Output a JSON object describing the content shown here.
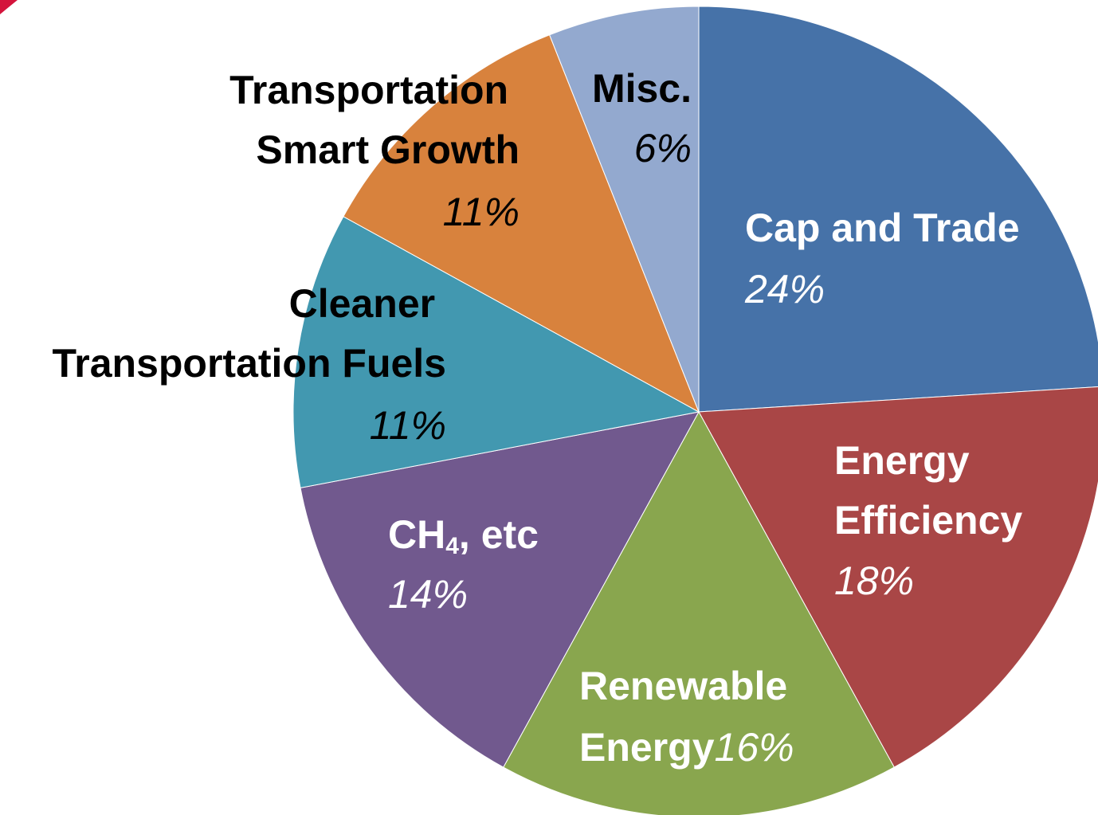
{
  "chart_data": {
    "type": "pie",
    "categories": [
      "Cap and Trade",
      "Energy Efficiency",
      "Renewable Energy",
      "CH4, etc",
      "Cleaner Transportation Fuels",
      "Transportation Smart Growth",
      "Misc."
    ],
    "values": [
      24,
      18,
      16,
      14,
      11,
      11,
      6
    ],
    "value_labels": [
      "24%",
      "18%",
      "16%",
      "14%",
      "11%",
      "11%",
      "6%"
    ],
    "colors": [
      "#4672a8",
      "#a94646",
      "#89a64e",
      "#71598e",
      "#4298b0",
      "#d8823d",
      "#93a9cf"
    ]
  }
}
